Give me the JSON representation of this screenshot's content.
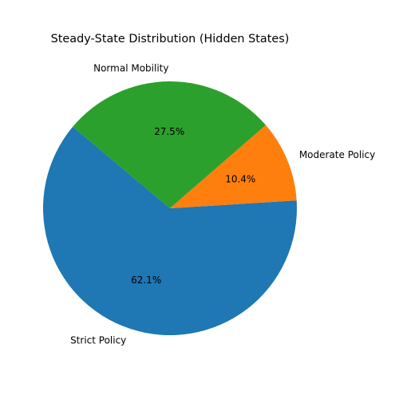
{
  "chart_data": {
    "type": "pie",
    "title": "Steady-State Distribution (Hidden States)",
    "categories": [
      "Strict Policy",
      "Moderate Policy",
      "Normal Mobility"
    ],
    "values": [
      62.1,
      10.4,
      27.5
    ],
    "value_labels": [
      "62.1%",
      "10.4%",
      "27.5%"
    ],
    "colors": [
      "#1f77b4",
      "#ff7f0e",
      "#2ca02c"
    ],
    "start_angle_deg": 140,
    "direction": "counterclockwise",
    "legend": "none"
  }
}
